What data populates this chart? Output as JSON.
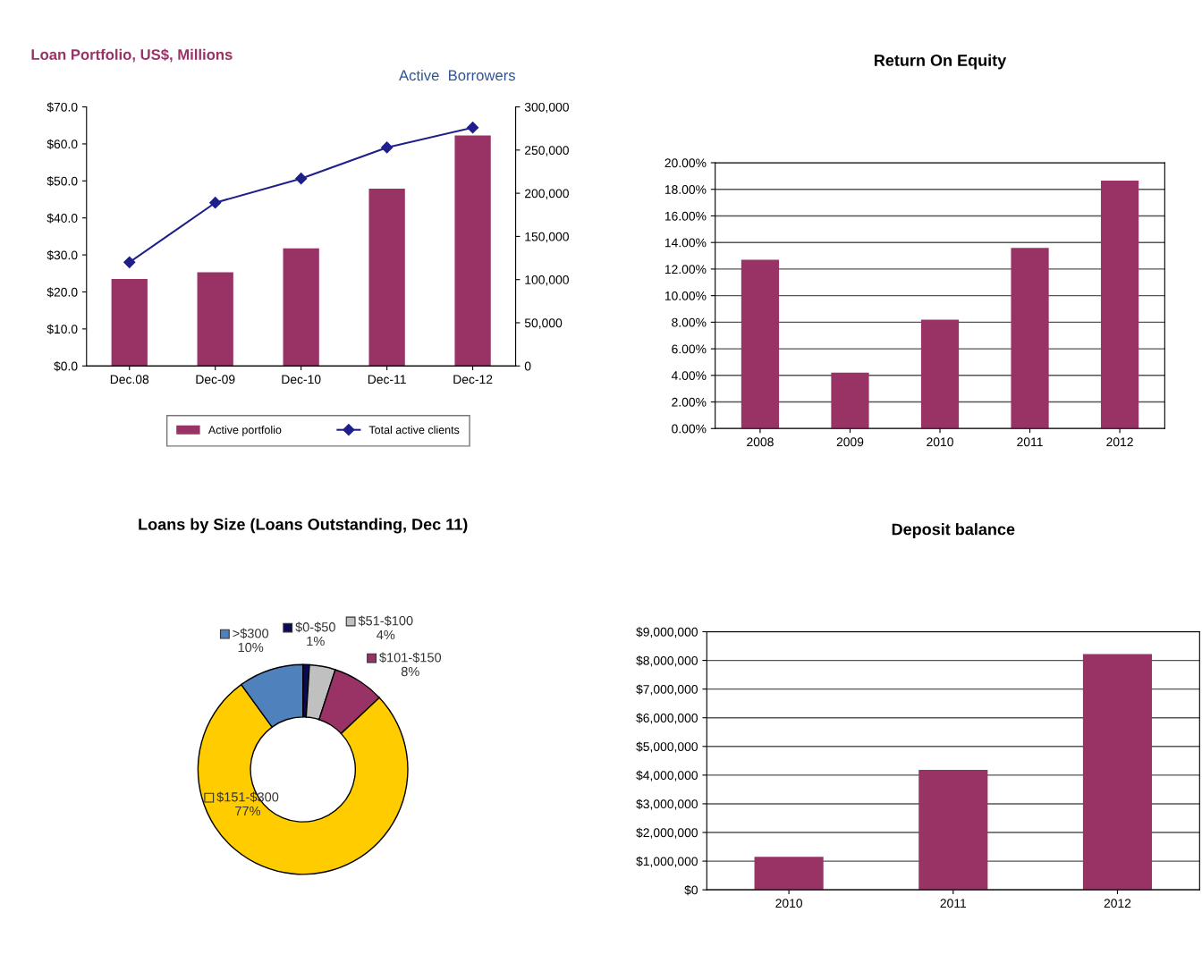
{
  "chart_data": [
    {
      "type": "bar",
      "ylabel": "Loan Portfolio, US$, Millions",
      "y2label": "Active  Borrowers",
      "categories": [
        "Dec.08",
        "Dec-09",
        "Dec-10",
        "Dec-11",
        "Dec-12"
      ],
      "series": [
        {
          "name": "Active portfolio",
          "type": "bar",
          "color": "#993366",
          "values": [
            23.5,
            25.3,
            31.8,
            47.9,
            62.3
          ]
        },
        {
          "name": "Total active clients",
          "type": "line",
          "axis": "y2",
          "color": "#1f1f8c",
          "marker": "diamond",
          "values": [
            120000,
            189000,
            217000,
            253000,
            276000
          ]
        }
      ],
      "ylim": [
        0,
        70
      ],
      "yticks": [
        {
          "value": 0,
          "label": "$0.0"
        },
        {
          "value": 10,
          "label": "$10.0"
        },
        {
          "value": 20,
          "label": "$20.0"
        },
        {
          "value": 30,
          "label": "$30.0"
        },
        {
          "value": 40,
          "label": "$40.0"
        },
        {
          "value": 50,
          "label": "$50.0"
        },
        {
          "value": 60,
          "label": "$60.0"
        },
        {
          "value": 70,
          "label": "$70.0"
        }
      ],
      "y2lim": [
        0,
        300000
      ],
      "y2ticks": [
        0,
        {
          "value": 50000,
          "label": "50,000"
        },
        {
          "value": 100000,
          "label": "100,000"
        },
        {
          "value": 150000,
          "label": "150,000"
        },
        {
          "value": 200000,
          "label": "200,000"
        },
        {
          "value": 250000,
          "label": "250,000"
        },
        {
          "value": 300000,
          "label": "300,000"
        }
      ],
      "grid": false,
      "legend": "bottom"
    },
    {
      "type": "bar",
      "title": "Return On Equity",
      "categories": [
        "2008",
        "2009",
        "2010",
        "2011",
        "2012"
      ],
      "color": "#993366",
      "values": [
        12.7,
        4.2,
        8.2,
        13.6,
        18.65
      ],
      "ylim": [
        0,
        20
      ],
      "yticks": [
        {
          "value": 0,
          "label": "0.00%"
        },
        {
          "value": 2,
          "label": "2.00%"
        },
        {
          "value": 4,
          "label": "4.00%"
        },
        {
          "value": 6,
          "label": "6.00%"
        },
        {
          "value": 8,
          "label": "8.00%"
        },
        {
          "value": 10,
          "label": "10.00%"
        },
        {
          "value": 12,
          "label": "12.00%"
        },
        {
          "value": 14,
          "label": "14.00%"
        },
        {
          "value": 16,
          "label": "16.00%"
        },
        {
          "value": 18,
          "label": "18.00%"
        },
        {
          "value": 20,
          "label": "20.00%"
        }
      ],
      "grid": "y"
    },
    {
      "type": "donut",
      "title": "Loans by Size (Loans Outstanding, Dec 11)",
      "categories": [
        "$0-$50",
        "$51-$100",
        "$101-$150",
        "$151-$300",
        ">$300"
      ],
      "values": [
        1,
        4,
        8,
        77,
        10
      ],
      "colors": [
        "#0a0a55",
        "#c0c0c0",
        "#993366",
        "#ffcc00",
        "#4f81bd"
      ],
      "value_labels": [
        "1%",
        "4%",
        "8%",
        "77%",
        "10%"
      ],
      "legend": "top"
    },
    {
      "type": "bar",
      "title": "Deposit balance",
      "categories": [
        "2010",
        "2011",
        "2012"
      ],
      "color": "#993366",
      "values": [
        1150000,
        4180000,
        8220000
      ],
      "ylim": [
        0,
        9000000
      ],
      "yticks": [
        {
          "value": 0,
          "label": "$0"
        },
        {
          "value": 1000000,
          "label": "$1,000,000"
        },
        {
          "value": 2000000,
          "label": "$2,000,000"
        },
        {
          "value": 3000000,
          "label": "$3,000,000"
        },
        {
          "value": 4000000,
          "label": "$4,000,000"
        },
        {
          "value": 5000000,
          "label": "$5,000,000"
        },
        {
          "value": 6000000,
          "label": "$6,000,000"
        },
        {
          "value": 7000000,
          "label": "$7,000,000"
        },
        {
          "value": 8000000,
          "label": "$8,000,000"
        },
        {
          "value": 9000000,
          "label": "$9,000,000"
        }
      ],
      "grid": "y"
    }
  ]
}
